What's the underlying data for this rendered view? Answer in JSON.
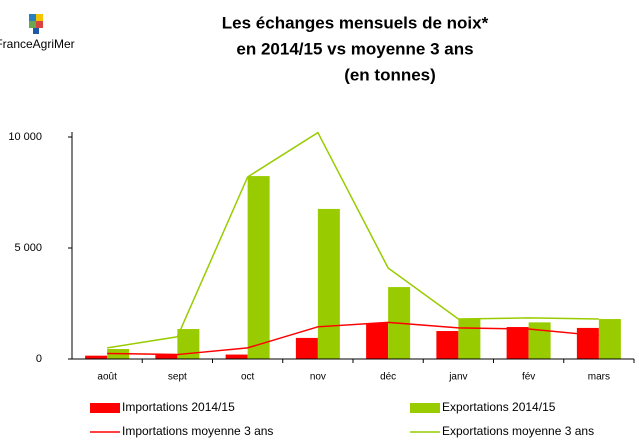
{
  "logo": "FranceAgriMer",
  "chart_data": {
    "type": "bar-line",
    "title": [
      "Les échanges mensuels de noix*",
      "en 2014/15 vs moyenne 3 ans",
      "(en tonnes)"
    ],
    "categories": [
      "août",
      "sept",
      "oct",
      "nov",
      "déc",
      "janv",
      "fév",
      "mars"
    ],
    "ylim": [
      0,
      10000
    ],
    "yticks": [
      0,
      {
        "value": 5000,
        "label": "5 000"
      },
      {
        "value": 10000,
        "label": "10 000"
      }
    ],
    "series": [
      {
        "name": "Importations 2014/15",
        "kind": "bar",
        "color": "#ff0000",
        "values": [
          150,
          200,
          200,
          950,
          1620,
          1260,
          1440,
          1400
        ]
      },
      {
        "name": "Exportations 2014/15",
        "kind": "bar",
        "color": "#99cc00",
        "values": [
          450,
          1350,
          8240,
          6760,
          3240,
          1800,
          1650,
          1800
        ]
      },
      {
        "name": "Importations moyenne 3 ans",
        "kind": "line",
        "color": "#ff0000",
        "values": [
          250,
          200,
          500,
          1450,
          1650,
          1400,
          1350,
          1050
        ]
      },
      {
        "name": "Exportations moyenne 3 ans",
        "kind": "line",
        "color": "#99cc00",
        "values": [
          500,
          1000,
          8200,
          10200,
          4100,
          1800,
          1850,
          1800
        ]
      }
    ]
  }
}
